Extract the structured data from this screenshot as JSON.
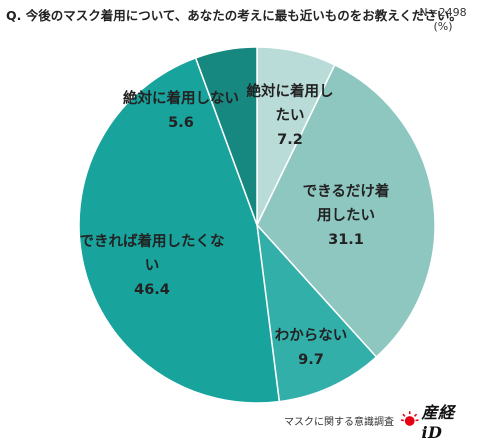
{
  "header": {
    "question": "Q. 今後のマスク着用について、あなたの考えに最も近いものをお教えください。",
    "sample_size": "N＝2498",
    "unit": "(%)"
  },
  "chart_data": {
    "type": "pie",
    "start": "12 o'clock",
    "direction": "clockwise",
    "slices": [
      {
        "lines": [
          "絶対に着用し",
          "たい"
        ],
        "value": 7.2,
        "value_label": "7.2",
        "color": "#b9dcd8"
      },
      {
        "lines": [
          "できるだけ着",
          "用したい"
        ],
        "value": 31.1,
        "value_label": "31.1",
        "color": "#8ec7c0"
      },
      {
        "lines": [
          "わからない"
        ],
        "value": 9.7,
        "value_label": "9.7",
        "color": "#33afaa"
      },
      {
        "lines": [
          "できれば着用したくな",
          "い"
        ],
        "value": 46.4,
        "value_label": "46.4",
        "color": "#18a39c"
      },
      {
        "lines": [
          "絶対に着用しない"
        ],
        "value": 5.6,
        "value_label": "5.6",
        "color": "#168880"
      }
    ]
  },
  "footer": {
    "survey": "マスクに関する意識調査",
    "brand": "産経iD",
    "brand_color": "#e60012"
  }
}
